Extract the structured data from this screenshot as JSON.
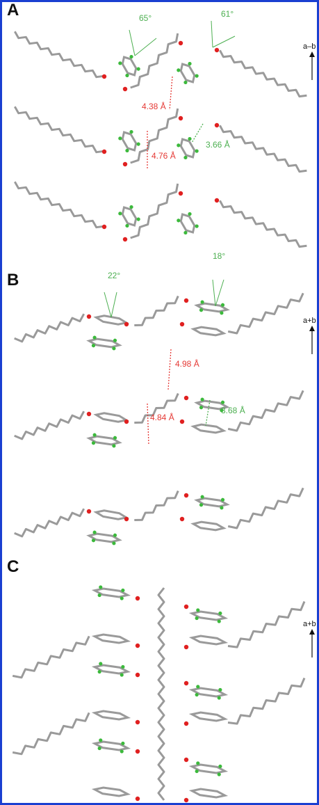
{
  "panels": [
    {
      "label": "A",
      "axis_label": "a–b",
      "annotations": [
        {
          "text": "65°",
          "color": "#4caf50"
        },
        {
          "text": "61°",
          "color": "#4caf50"
        },
        {
          "text": "4.38 Å",
          "color": "#e53935"
        },
        {
          "text": "4.76 Å",
          "color": "#e53935"
        },
        {
          "text": "3.66 Å",
          "color": "#4caf50"
        }
      ]
    },
    {
      "label": "B",
      "axis_label": "a+b",
      "annotations": [
        {
          "text": "22°",
          "color": "#4caf50"
        },
        {
          "text": "18°",
          "color": "#4caf50"
        },
        {
          "text": "4.98 Å",
          "color": "#e53935"
        },
        {
          "text": "4.84 Å",
          "color": "#e53935"
        },
        {
          "text": "3.68 Å",
          "color": "#4caf50"
        }
      ]
    },
    {
      "label": "C",
      "axis_label": "a+b",
      "annotations": []
    }
  ]
}
